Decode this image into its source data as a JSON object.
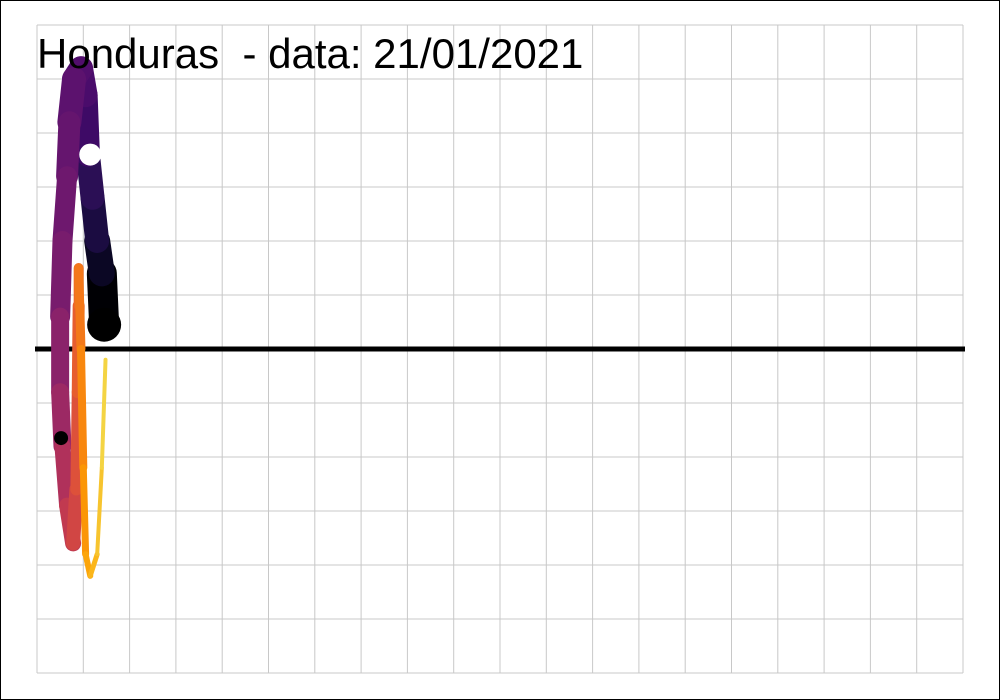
{
  "chart_data": {
    "type": "line",
    "title": "Honduras  - data: 21/01/2021",
    "xlabel": "",
    "ylabel": "",
    "grid": true,
    "zero_line": true,
    "xlim": [
      0,
      20
    ],
    "ylim": [
      -6,
      6
    ],
    "series": [
      {
        "points": [
          {
            "x": 1.45,
            "y": 0.45,
            "w": 30,
            "c": "#000004"
          },
          {
            "x": 1.4,
            "y": 1.4,
            "w": 26,
            "c": "#0b0724"
          },
          {
            "x": 1.3,
            "y": 2.0,
            "w": 24,
            "c": "#1b0c41"
          },
          {
            "x": 1.2,
            "y": 2.8,
            "w": 24,
            "c": "#2b0f55"
          },
          {
            "x": 1.1,
            "y": 3.6,
            "w": 24,
            "c": "#3e0a66"
          },
          {
            "x": 1.05,
            "y": 4.7,
            "w": 24,
            "c": "#4a0c6b"
          },
          {
            "x": 0.95,
            "y": 5.2,
            "w": 24,
            "c": "#520e6d"
          },
          {
            "x": 0.8,
            "y": 5.0,
            "w": 24,
            "c": "#5c126e"
          },
          {
            "x": 0.7,
            "y": 4.2,
            "w": 22,
            "c": "#65156e"
          },
          {
            "x": 0.65,
            "y": 3.2,
            "w": 20,
            "c": "#6e186e"
          },
          {
            "x": 0.55,
            "y": 2.0,
            "w": 20,
            "c": "#781c6d"
          },
          {
            "x": 0.5,
            "y": 0.6,
            "w": 18,
            "c": "#8a226a"
          },
          {
            "x": 0.5,
            "y": -0.8,
            "w": 18,
            "c": "#9c2964"
          },
          {
            "x": 0.55,
            "y": -1.8,
            "w": 16,
            "c": "#b0315b"
          },
          {
            "x": 0.65,
            "y": -2.9,
            "w": 16,
            "c": "#c13a50"
          },
          {
            "x": 0.78,
            "y": -3.6,
            "w": 14,
            "c": "#d14644"
          },
          {
            "x": 0.85,
            "y": -2.6,
            "w": 12,
            "c": "#dd513a"
          },
          {
            "x": 0.88,
            "y": -0.8,
            "w": 12,
            "c": "#e65d2f"
          },
          {
            "x": 0.9,
            "y": 0.8,
            "w": 10,
            "c": "#ee6a24"
          },
          {
            "x": 0.9,
            "y": 1.5,
            "w": 9,
            "c": "#f37819"
          },
          {
            "x": 0.95,
            "y": 0.0,
            "w": 8,
            "c": "#f8870e"
          },
          {
            "x": 1.0,
            "y": -2.2,
            "w": 7,
            "c": "#fb9606"
          },
          {
            "x": 1.05,
            "y": -3.8,
            "w": 6,
            "c": "#fca50a"
          },
          {
            "x": 1.15,
            "y": -4.2,
            "w": 5,
            "c": "#fbb61a"
          },
          {
            "x": 1.3,
            "y": -3.8,
            "w": 4,
            "c": "#f7c42e"
          },
          {
            "x": 1.4,
            "y": -2.2,
            "w": 4,
            "c": "#f4d443"
          },
          {
            "x": 1.48,
            "y": -0.2,
            "w": 3,
            "c": "#f1e45d"
          }
        ]
      }
    ],
    "markers": [
      {
        "x": 1.45,
        "y": 0.45,
        "r": 17,
        "color": "#000000"
      },
      {
        "x": 1.15,
        "y": 3.6,
        "r": 11,
        "color": "#ffffff"
      },
      {
        "x": 0.52,
        "y": -1.65,
        "r": 7,
        "color": "#000000"
      }
    ],
    "colors": {
      "grid": "#c8c8c8",
      "zero_line": "#000000",
      "background": "#ffffff"
    }
  }
}
